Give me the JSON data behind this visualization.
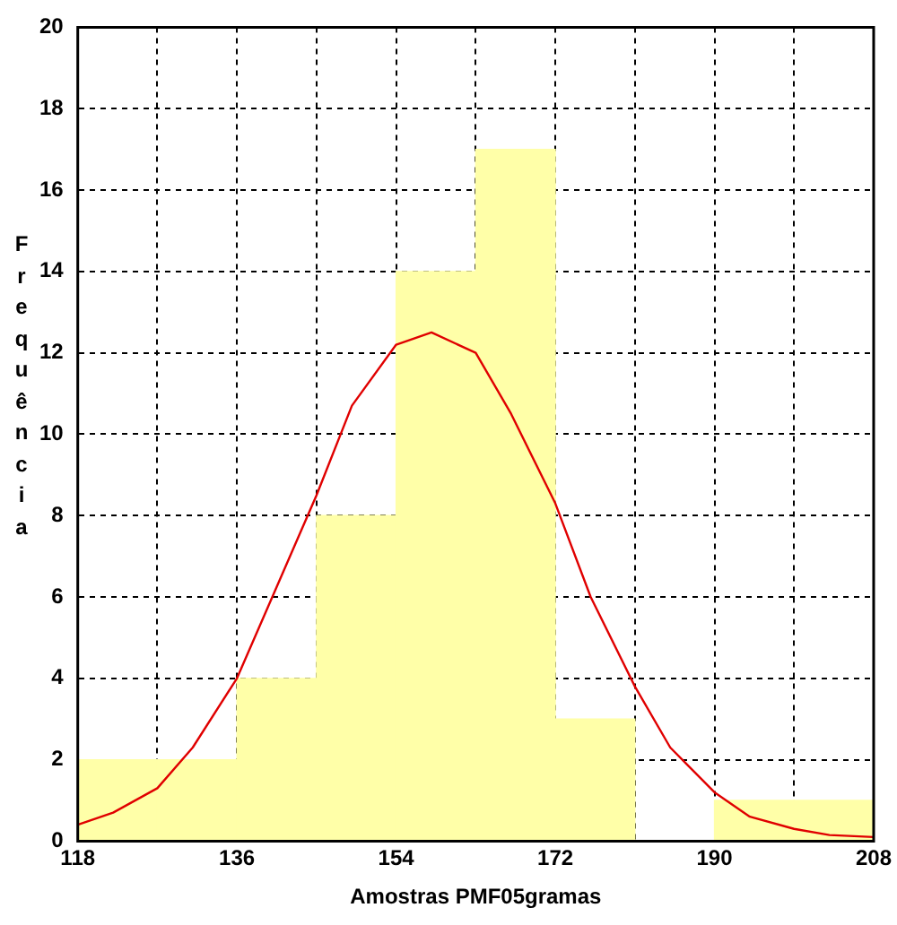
{
  "chart_data": {
    "type": "histogram",
    "xlabel": "Amostras PMF05gramas",
    "ylabel": "Frequência",
    "bins": [
      118,
      127,
      136,
      145,
      154,
      163,
      172,
      181,
      190,
      199,
      208
    ],
    "values": [
      2,
      2,
      4,
      8,
      14,
      17,
      3,
      0,
      1,
      1
    ],
    "color": "#ffffa8",
    "series": [
      {
        "type": "line",
        "color": "#e00000",
        "x": [
          118,
          122,
          127,
          131,
          136,
          140,
          145,
          149,
          154,
          158,
          163,
          167,
          172,
          176,
          181,
          185,
          190,
          194,
          199,
          203,
          208
        ],
        "values": [
          0.4,
          0.7,
          1.3,
          2.3,
          4,
          6,
          8.5,
          10.7,
          12.2,
          12.5,
          12,
          10.5,
          8.3,
          6,
          3.8,
          2.3,
          1.2,
          0.6,
          0.3,
          0.15,
          0.1
        ]
      }
    ],
    "xlim": [
      118,
      208
    ],
    "ylim": [
      0,
      20
    ],
    "xticks": [
      118,
      {
        "value": 127,
        "label": null
      },
      136,
      {
        "value": 145,
        "label": null
      },
      154,
      {
        "value": 163,
        "label": null
      },
      172,
      {
        "value": 181,
        "label": null
      },
      190,
      {
        "value": 199,
        "label": null
      },
      208
    ],
    "yticks": [
      0,
      2,
      4,
      6,
      8,
      10,
      12,
      14,
      16,
      18,
      20
    ],
    "grid": true,
    "legend": false,
    "marker": "none",
    "line_style": "solid"
  }
}
